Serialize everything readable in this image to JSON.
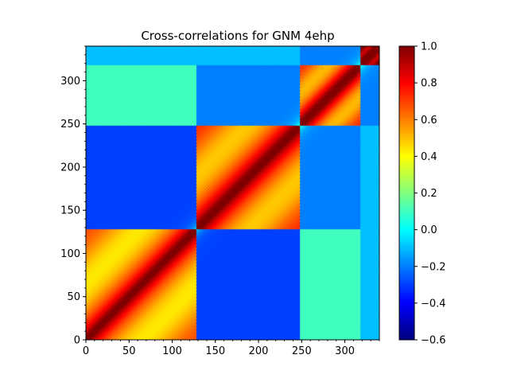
{
  "chart_data": {
    "type": "heatmap",
    "title": "Cross-correlations for GNM 4ehp",
    "xlabel": "",
    "ylabel": "",
    "n_residues": 340,
    "xlim": [
      0,
      340
    ],
    "ylim": [
      0,
      340
    ],
    "x_ticks": [
      0,
      50,
      100,
      150,
      200,
      250,
      300
    ],
    "y_ticks": [
      0,
      50,
      100,
      150,
      200,
      250,
      300
    ],
    "colormap": "jet",
    "color_range": [
      -0.6,
      1.0
    ],
    "colorbar_ticks": [
      1.0,
      0.8,
      0.6,
      0.4,
      0.2,
      0.0,
      -0.2,
      -0.4,
      -0.6
    ],
    "colorbar_tick_labels": [
      "1.0",
      "0.8",
      "0.6",
      "0.4",
      "0.2",
      "0.0",
      "−0.2",
      "−0.4",
      "−0.6"
    ],
    "domain_boundaries": [
      0,
      128,
      248,
      318,
      340
    ],
    "domain_block_values": [
      [
        0.55,
        -0.3,
        0.1,
        -0.1
      ],
      [
        -0.3,
        0.6,
        -0.2,
        -0.1
      ],
      [
        0.1,
        -0.2,
        0.6,
        -0.2
      ],
      [
        -0.1,
        -0.1,
        -0.2,
        1.0
      ]
    ],
    "diagonal_value": 1.0,
    "grid": false
  }
}
